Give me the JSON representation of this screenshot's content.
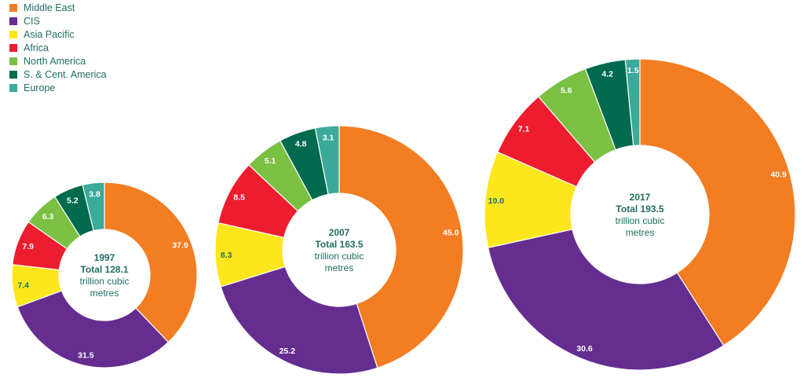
{
  "legend": [
    {
      "name": "Middle East",
      "color": "#f37d22"
    },
    {
      "name": "CIS",
      "color": "#652d90"
    },
    {
      "name": "Asia Pacific",
      "color": "#fde61c"
    },
    {
      "name": "Africa",
      "color": "#ed1c2e"
    },
    {
      "name": "North America",
      "color": "#7ac043"
    },
    {
      "name": "S. & Cent. America",
      "color": "#006a4e"
    },
    {
      "name": "Europe",
      "color": "#3aaa9a"
    }
  ],
  "chart_data": [
    {
      "type": "pie",
      "year": "1997",
      "total_label": "Total 128.1",
      "unit_line1": "trillion cubic",
      "unit_line2": "metres",
      "categories": [
        "Middle East",
        "CIS",
        "Asia Pacific",
        "Africa",
        "North America",
        "S. & Cent. America",
        "Europe"
      ],
      "values": [
        37.9,
        31.5,
        7.4,
        7.9,
        6.3,
        5.2,
        3.8
      ],
      "labels": [
        "37.9",
        "31.5",
        "7.4",
        "7.9",
        "6.3",
        "5.2",
        "3.8"
      ]
    },
    {
      "type": "pie",
      "year": "2007",
      "total_label": "Total 163.5",
      "unit_line1": "trillion cubic",
      "unit_line2": "metres",
      "categories": [
        "Middle East",
        "CIS",
        "Asia Pacific",
        "Africa",
        "North America",
        "S. & Cent. America",
        "Europe"
      ],
      "values": [
        45.0,
        25.2,
        8.3,
        8.5,
        5.1,
        4.8,
        3.1
      ],
      "labels": [
        "45.0",
        "25.2",
        "8.3",
        "8.5",
        "5.1",
        "4.8",
        "3.1"
      ]
    },
    {
      "type": "pie",
      "year": "2017",
      "total_label": "Total 193.5",
      "unit_line1": "trillion cubic",
      "unit_line2": "metres",
      "categories": [
        "Middle East",
        "CIS",
        "Asia Pacific",
        "Africa",
        "North America",
        "S. & Cent. America",
        "Europe"
      ],
      "values": [
        40.9,
        30.6,
        10.0,
        7.1,
        5.6,
        4.2,
        1.5
      ],
      "labels": [
        "40.9",
        "30.6",
        "10.0",
        "7.1",
        "5.6",
        "4.2",
        "1.5"
      ]
    }
  ]
}
